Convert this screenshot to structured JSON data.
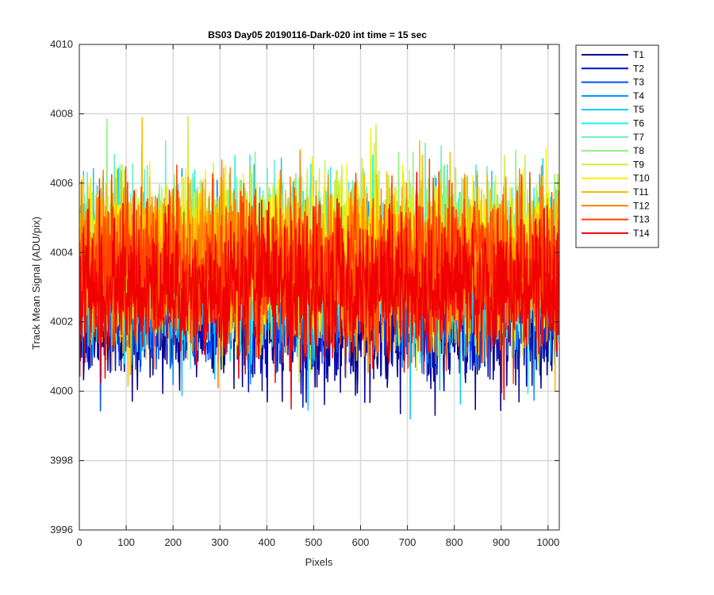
{
  "chart_data": {
    "type": "line",
    "title": "BS03 Day05 20190116-Dark-020 int time = 15 sec",
    "xlabel": "Pixels",
    "ylabel": "Track Mean Signal (ADU/pix)",
    "xlim": [
      0,
      1024
    ],
    "ylim": [
      3996,
      4010
    ],
    "xticks": [
      0,
      100,
      200,
      300,
      400,
      500,
      600,
      700,
      800,
      900,
      1000
    ],
    "yticks": [
      3996,
      3998,
      4000,
      4002,
      4004,
      4006,
      4008,
      4010
    ],
    "grid": true,
    "legend_position": "outside-top-right",
    "n_points": 1024,
    "series": [
      {
        "name": "T1",
        "color": "#00008F",
        "mean": 4002.0,
        "spread": 0.9
      },
      {
        "name": "T2",
        "color": "#0010C8",
        "mean": 4002.4,
        "spread": 0.9
      },
      {
        "name": "T3",
        "color": "#0050FF",
        "mean": 4002.8,
        "spread": 0.9
      },
      {
        "name": "T4",
        "color": "#0090FF",
        "mean": 4003.1,
        "spread": 1.0
      },
      {
        "name": "T5",
        "color": "#10C8F0",
        "mean": 4003.4,
        "spread": 1.1
      },
      {
        "name": "T6",
        "color": "#20F0F0",
        "mean": 4003.6,
        "spread": 1.1
      },
      {
        "name": "T7",
        "color": "#60F0C0",
        "mean": 4003.8,
        "spread": 1.1
      },
      {
        "name": "T8",
        "color": "#90F080",
        "mean": 4004.0,
        "spread": 1.1
      },
      {
        "name": "T9",
        "color": "#C8F040",
        "mean": 4004.0,
        "spread": 1.1
      },
      {
        "name": "T10",
        "color": "#FFF000",
        "mean": 4004.0,
        "spread": 1.1
      },
      {
        "name": "T11",
        "color": "#FFB800",
        "mean": 4003.8,
        "spread": 1.1
      },
      {
        "name": "T12",
        "color": "#FF8000",
        "mean": 4003.6,
        "spread": 1.1
      },
      {
        "name": "T13",
        "color": "#FF4000",
        "mean": 4003.5,
        "spread": 1.1
      },
      {
        "name": "T14",
        "color": "#F00000",
        "mean": 4003.0,
        "spread": 1.0
      }
    ]
  }
}
